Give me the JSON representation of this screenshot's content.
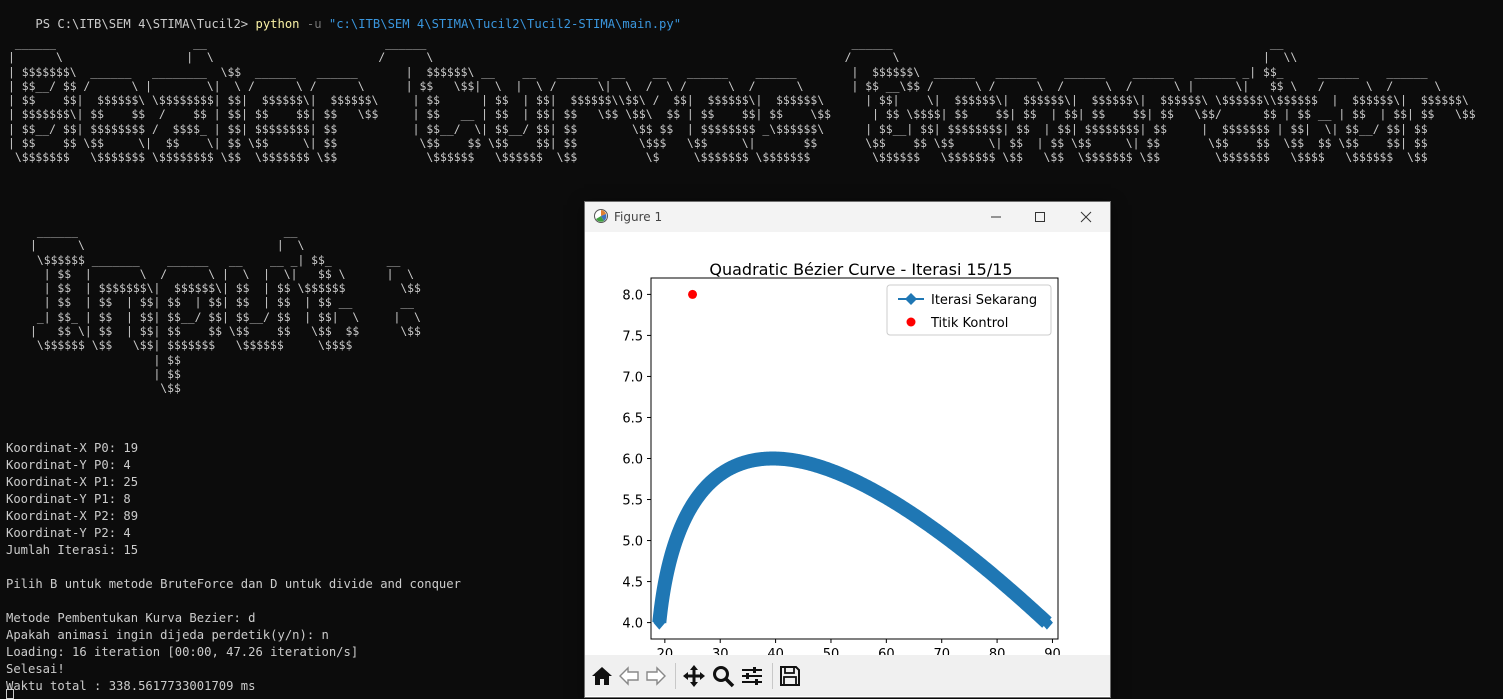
{
  "terminal": {
    "prompt": "PS C:\\ITB\\SEM 4\\STIMA\\Tucil2> ",
    "cmd_python": "python",
    "cmd_flag": " -u ",
    "cmd_path": "\"c:\\ITB\\SEM 4\\STIMA\\Tucil2\\Tucil2-STIMA\\main.py\"",
    "ascii_banner_1": " ______                    __                          ______                                                              ______                                                       __\n|      \\                  |  \\                        /      \\                                                            /      \\                                                     |  \\\\\n| $$$$$$$\\  ______   ________  \\$$  ______   ______       |  $$$$$$\\ __    __   ______  __    __   ______    ______        |  $$$$$$\\  ______   ______    ______    ______   ______ _| $$_     ______    ______\n| $$__/ $$ /      \\ |        \\|  \\ /      \\ /      \\      | $$   \\$$|  \\  |  \\ /      \\|  \\  /  \\ /      \\  /      \\       | $$ __\\$$ /      \\ /      \\  /      \\  /      \\ |      \\|   $$ \\   /      \\  /      \\\n| $$    $$|  $$$$$$\\ \\$$$$$$$$| $$|  $$$$$$\\|  $$$$$$\\     | $$      | $$  | $$|  $$$$$$\\\\$$\\ /  $$|  $$$$$$\\|  $$$$$$\\      | $$|    \\|  $$$$$$\\|  $$$$$$\\|  $$$$$$\\|  $$$$$$\\ \\$$$$$$\\\\$$$$$$  |  $$$$$$\\|  $$$$$$\\\n| $$$$$$$\\| $$    $$  /    $$ | $$| $$    $$| $$   \\$$     | $$   __ | $$  | $$| $$   \\$$ \\$$\\  $$ | $$    $$| $$    \\$$      | $$ \\$$$$| $$    $$| $$  | $$| $$    $$| $$   \\$$/      $$ | $$ __ | $$  | $$| $$   \\$$\n| $$__/ $$| $$$$$$$$ /  $$$$_ | $$| $$$$$$$$| $$           | $$__/  \\| $$__/ $$| $$        \\$$ $$  | $$$$$$$$ _\\$$$$$$\\      | $$__| $$| $$$$$$$$| $$  | $$| $$$$$$$$| $$     |  $$$$$$$ | $$|  \\| $$__/ $$| $$\n| $$    $$ \\$$     \\|  $$    \\| $$ \\$$     \\| $$            \\$$    $$ \\$$    $$| $$         \\$$$   \\$$     \\|       $$       \\$$    $$ \\$$     \\| $$  | $$ \\$$     \\| $$       \\$$    $$  \\$$  $$ \\$$    $$| $$\n \\$$$$$$$   \\$$$$$$$ \\$$$$$$$$ \\$$  \\$$$$$$$ \\$$             \\$$$$$$   \\$$$$$$  \\$$          \\$     \\$$$$$$$ \\$$$$$$$         \\$$$$$$   \\$$$$$$$ \\$$   \\$$  \\$$$$$$$ \\$$        \\$$$$$$$   \\$$$$   \\$$$$$$  \\$$",
    "ascii_banner_2": " ______                              __\n|      \\                            |  \\\n \\$$$$$$ _______    ______   __    __ _| $$_        __\n  | $$  |       \\  /      \\ |  \\  |  \\|   $$ \\      |  \\\n  | $$  | $$$$$$$\\|  $$$$$$\\| $$  | $$ \\$$$$$$        \\$$\n  | $$  | $$  | $$| $$  | $$| $$  | $$  | $$ __       __\n _| $$_ | $$  | $$| $$__/ $$| $$__/ $$  | $$|  \\     |  \\\n|   $$ \\| $$  | $$| $$    $$ \\$$    $$   \\$$  $$      \\$$\n \\$$$$$$ \\$$   \\$$| $$$$$$$   \\$$$$$$     \\$$$$\n                  | $$\n                  | $$\n                   \\$$",
    "lines": [
      "Koordinat-X P0: 19",
      "Koordinat-Y P0: 4",
      "Koordinat-X P1: 25",
      "Koordinat-Y P1: 8",
      "Koordinat-X P2: 89",
      "Koordinat-Y P2: 4",
      "Jumlah Iterasi: 15",
      "",
      "Pilih B untuk metode BruteForce dan D untuk divide and conquer",
      "",
      "Metode Pembentukan Kurva Bezier: d",
      "Apakah animasi ingin dijeda perdetik(y/n): n",
      "Loading: 16 iteration [00:00, 47.26 iteration/s]",
      "Selesai!",
      "Waktu total : 338.5617733001709 ms"
    ]
  },
  "figure": {
    "window_title": "Figure 1",
    "icons": {
      "minimize": "minimize-icon",
      "maximize": "maximize-icon",
      "close": "close-icon",
      "toolbar": [
        "home-icon",
        "back-arrow-icon",
        "forward-arrow-icon",
        "pan-move-icon",
        "zoom-magnifier-icon",
        "configure-subplots-icon",
        "save-disk-icon"
      ]
    }
  },
  "chart_data": {
    "type": "line",
    "title": "Quadratic Bézier Curve - Iterasi 15/15",
    "xlabel": "",
    "ylabel": "",
    "xlim": [
      17.5,
      91
    ],
    "ylim": [
      3.8,
      8.2
    ],
    "xticks": [
      20,
      30,
      40,
      50,
      60,
      70,
      80,
      90
    ],
    "yticks": [
      4.0,
      4.5,
      5.0,
      5.5,
      6.0,
      6.5,
      7.0,
      7.5,
      8.0
    ],
    "legend_position": "upper right",
    "series": [
      {
        "name": "Iterasi Sekarang",
        "kind": "bezier-line",
        "color": "#1f77b4",
        "control_points": [
          [
            19,
            4
          ],
          [
            25,
            8
          ],
          [
            89,
            4
          ]
        ]
      },
      {
        "name": "Titik Kontrol",
        "kind": "scatter",
        "color": "#ff0000",
        "points": [
          [
            25,
            8
          ]
        ]
      }
    ]
  }
}
